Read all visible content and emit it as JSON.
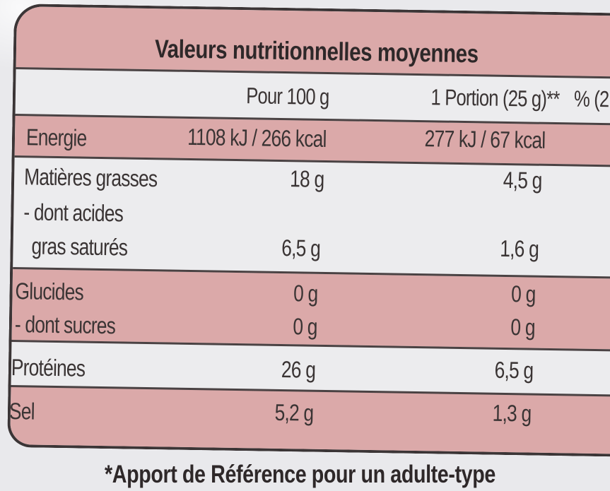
{
  "title": "Valeurs nutritionnelles moyennes",
  "columns": {
    "per100": "Pour 100 g",
    "portion": "1 Portion (25 g)**",
    "percent": "% (2"
  },
  "rows": {
    "energie": {
      "label": "Energie",
      "per100": "1108 kJ / 266 kcal",
      "portion": "277 kJ / 67 kcal"
    },
    "matieres": {
      "label": "Matières grasses",
      "per100": "18 g",
      "portion": "4,5 g"
    },
    "satures_l1": {
      "label": "- dont acides"
    },
    "satures": {
      "label": "gras saturés",
      "per100": "6,5 g",
      "portion": "1,6 g"
    },
    "glucides": {
      "label": "Glucides",
      "per100": "0 g",
      "portion": "0 g"
    },
    "sucres": {
      "label": "- dont sucres",
      "per100": "0 g",
      "portion": "0 g"
    },
    "proteines": {
      "label": "Protéines",
      "per100": "26 g",
      "portion": "6,5 g"
    },
    "sel": {
      "label": "Sel",
      "per100": "5,2 g",
      "portion": "1,3 g"
    }
  },
  "footnote": "*Apport de Référence pour un adulte-type",
  "colors": {
    "band": "#dba9a9",
    "background": "#ececee",
    "ink": "#3a3434"
  }
}
